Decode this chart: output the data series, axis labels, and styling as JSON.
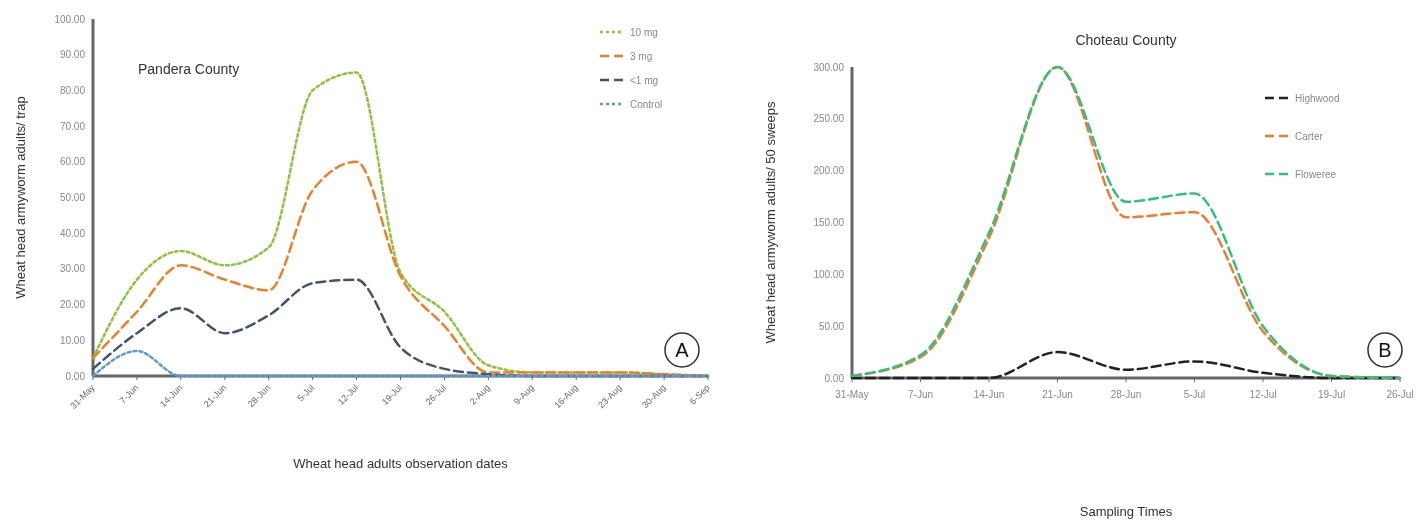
{
  "chart_data": [
    {
      "type": "line",
      "title": "Pandera County",
      "xlabel": "Wheat head adults observation dates",
      "ylabel": "Wheat head armyworm adults/ trap",
      "x": [
        "--05-31",
        "--06-07",
        "--06-14",
        "--06-21",
        "--06-28",
        "--07-05",
        "--07-12",
        "--07-19",
        "--07-26",
        "--08-02",
        "--08-09",
        "--08-16",
        "--08-23",
        "--08-30",
        "--09-06"
      ],
      "series": [
        {
          "name": "10 mg",
          "color": "#8cc43c",
          "line_style": "dotted",
          "values": [
            5,
            27,
            35,
            31,
            36,
            80,
            85,
            29,
            18,
            3,
            1,
            1,
            1,
            0.5,
            0
          ]
        },
        {
          "name": "3 mg",
          "color": "#f07f22",
          "line_style": "dashed",
          "values": [
            5,
            18,
            31,
            27,
            24,
            52,
            60,
            28,
            14,
            1,
            1,
            1,
            1,
            0.5,
            0
          ]
        },
        {
          "name": "<1 mg",
          "color": "#44546a",
          "line_style": "dashed",
          "values": [
            2,
            12,
            19,
            12,
            17,
            26,
            27,
            8,
            2,
            0.5,
            0,
            0,
            0,
            0,
            0
          ]
        },
        {
          "name": "Control",
          "color": "#5b9bd5",
          "line_style": "dotted",
          "values": [
            0,
            7,
            0,
            0,
            0,
            0,
            0,
            0,
            0,
            0,
            0,
            0,
            0,
            0,
            0
          ]
        }
      ],
      "xlim": [
        "--05-31",
        "--09-06"
      ],
      "xticks": [
        {
          "value": "--05-31",
          "label": "31-May"
        },
        {
          "value": "--06-07",
          "label": "7-Jun"
        },
        {
          "value": "--06-14",
          "label": "14-Jun"
        },
        {
          "value": "--06-21",
          "label": "21-Jun"
        },
        {
          "value": "--06-28",
          "label": "28-Jun"
        },
        {
          "value": "--07-05",
          "label": "5-Jul"
        },
        {
          "value": "--07-12",
          "label": "12-Jul"
        },
        {
          "value": "--07-19",
          "label": "19-Jul"
        },
        {
          "value": "--07-26",
          "label": "26-Jul"
        },
        {
          "value": "--08-02",
          "label": "2-Aug"
        },
        {
          "value": "--08-09",
          "label": "9-Aug"
        },
        {
          "value": "--08-16",
          "label": "16-Aug"
        },
        {
          "value": "--08-23",
          "label": "23-Aug"
        },
        {
          "value": "--08-30",
          "label": "30-Aug"
        },
        {
          "value": "--09-06",
          "label": "6-Sep"
        }
      ],
      "ylim": [
        0,
        100
      ],
      "yticks": [
        {
          "value": 0,
          "label": "0.00"
        },
        {
          "value": 10,
          "label": "10.00"
        },
        {
          "value": 20,
          "label": "20.00"
        },
        {
          "value": 30,
          "label": "30.00"
        },
        {
          "value": 40,
          "label": "40.00"
        },
        {
          "value": 50,
          "label": "50.00"
        },
        {
          "value": 60,
          "label": "60.00"
        },
        {
          "value": 70,
          "label": "70.00"
        },
        {
          "value": 80,
          "label": "80.00"
        },
        {
          "value": 90,
          "label": "90.00"
        },
        {
          "value": 100,
          "label": "100.00"
        }
      ],
      "grid": false,
      "legend": "top right",
      "annotations": [
        "A"
      ]
    },
    {
      "type": "line",
      "title": "Choteau County",
      "xlabel": "Sampling Times",
      "ylabel": "Wheat head armyworm adults/ 50 sweeps",
      "x": [
        "--05-31",
        "--06-07",
        "--06-14",
        "--06-21",
        "--06-28",
        "--07-05",
        "--07-12",
        "--07-19",
        "--07-26"
      ],
      "series": [
        {
          "name": "Highwood",
          "color": "#222222",
          "line_style": "dashed",
          "values": [
            0,
            0,
            0,
            25,
            8,
            16,
            5,
            0,
            0
          ]
        },
        {
          "name": "Carter",
          "color": "#f47a2b",
          "line_style": "dashed",
          "values": [
            2,
            20,
            135,
            300,
            155,
            160,
            45,
            2,
            0
          ]
        },
        {
          "name": "Floweree",
          "color": "#2ec27e",
          "line_style": "dashed",
          "values": [
            2,
            22,
            140,
            300,
            170,
            178,
            50,
            2,
            0
          ]
        }
      ],
      "xlim": [
        "--05-31",
        "--07-26"
      ],
      "xticks": [
        {
          "value": "--05-31",
          "label": "31-May"
        },
        {
          "value": "--06-07",
          "label": "7-Jun"
        },
        {
          "value": "--06-14",
          "label": "14-Jun"
        },
        {
          "value": "--06-21",
          "label": "21-Jun"
        },
        {
          "value": "--06-28",
          "label": "28-Jun"
        },
        {
          "value": "--07-05",
          "label": "5-Jul"
        },
        {
          "value": "--07-12",
          "label": "12-Jul"
        },
        {
          "value": "--07-19",
          "label": "19-Jul"
        },
        {
          "value": "--07-26",
          "label": "26-Jul"
        }
      ],
      "ylim": [
        0,
        300
      ],
      "yticks": [
        {
          "value": 0,
          "label": "0.00"
        },
        {
          "value": 50,
          "label": "50.00"
        },
        {
          "value": 100,
          "label": "100.00"
        },
        {
          "value": 150,
          "label": "150.00"
        },
        {
          "value": 200,
          "label": "200.00"
        },
        {
          "value": 250,
          "label": "250.00"
        },
        {
          "value": 300,
          "label": "300.00"
        }
      ],
      "grid": false,
      "legend": "top right",
      "annotations": [
        "B"
      ]
    }
  ]
}
